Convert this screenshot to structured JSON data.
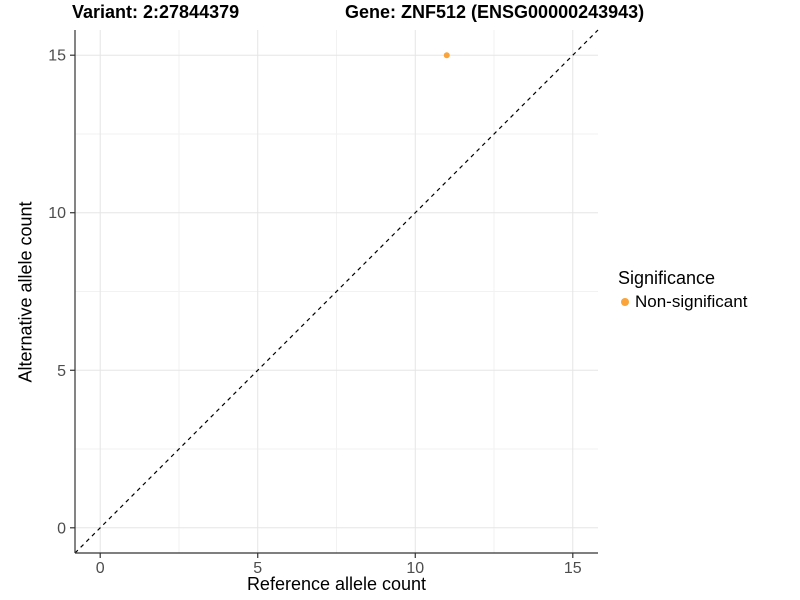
{
  "title": {
    "variant": "Variant: 2:27844379",
    "gene": "Gene: ZNF512 (ENSG00000243943)"
  },
  "chart_data": {
    "type": "scatter",
    "title": "Variant: 2:27844379    Gene: ZNF512 (ENSG00000243943)",
    "xlabel": "Reference allele count",
    "ylabel": "Alternative allele count",
    "xlim": [
      -0.8,
      15.8
    ],
    "ylim": [
      -0.8,
      15.8
    ],
    "x_ticks": [
      0,
      5,
      10,
      15
    ],
    "y_ticks": [
      0,
      5,
      10,
      15
    ],
    "x_minor_ticks": [
      2.5,
      7.5,
      12.5
    ],
    "y_minor_ticks": [
      2.5,
      7.5,
      12.5
    ],
    "grid": "on",
    "identity_line": {
      "shown": true,
      "style": "dashed",
      "color": "#000000",
      "from": -0.8,
      "to": 15.8
    },
    "points": [
      {
        "x": 11,
        "y": 15,
        "series": "Non-significant",
        "color": "#FAA43A",
        "radius": 3
      }
    ],
    "legend": {
      "position": "right",
      "title": "Significance",
      "items": [
        {
          "label": "Non-significant",
          "color": "#FAA43A"
        }
      ]
    },
    "colors": {
      "point": "#FAA43A",
      "grid_major": "#e5e5e5",
      "grid_minor": "#f2f2f2",
      "axis_line": "#333333",
      "tick_label": "#4d4d4d",
      "background": "#ffffff"
    }
  }
}
